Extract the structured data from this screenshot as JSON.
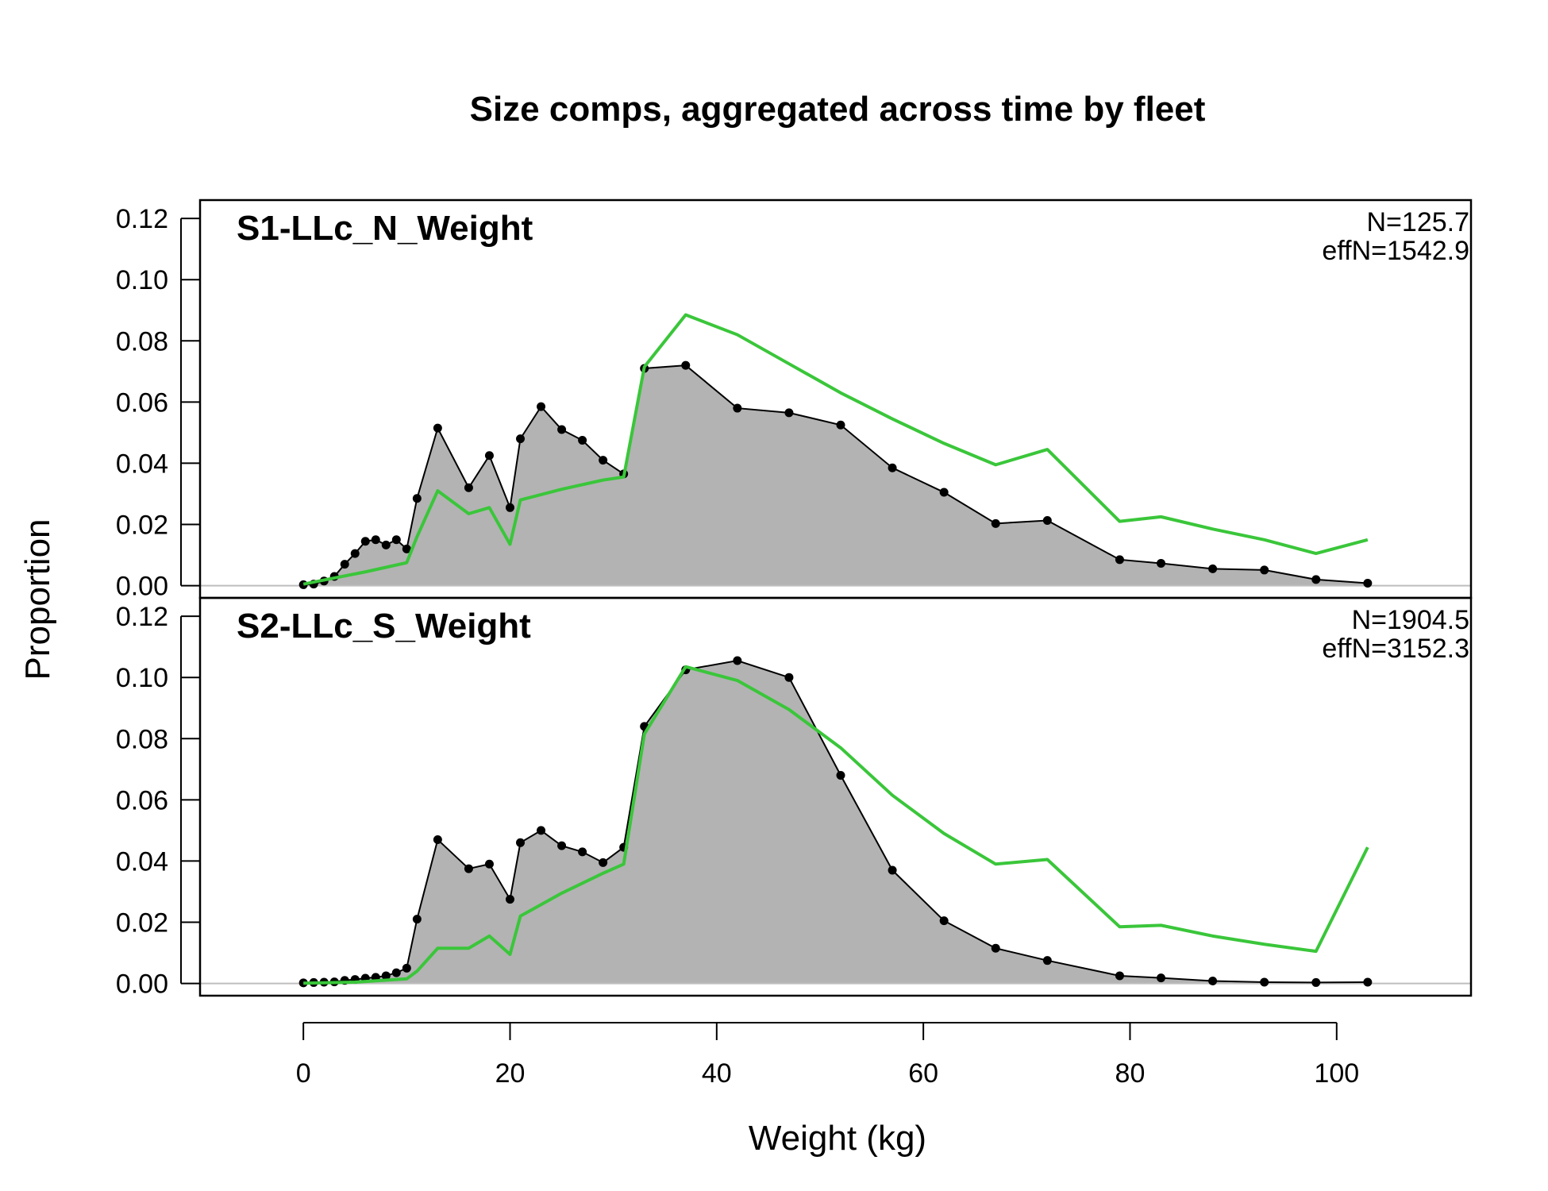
{
  "chart_data": {
    "type": "area",
    "title": "Size comps, aggregated across time by fleet",
    "xlabel": "Weight (kg)",
    "ylabel": "Proportion",
    "xlim": [
      -10,
      113
    ],
    "xticks": [
      0,
      20,
      40,
      60,
      80,
      100
    ],
    "ylim": [
      -0.004,
      0.126
    ],
    "yticks": [
      0.0,
      0.02,
      0.04,
      0.06,
      0.08,
      0.1,
      0.12
    ],
    "ytick_labels": [
      "0.00",
      "0.02",
      "0.04",
      "0.06",
      "0.08",
      "0.10",
      "0.12"
    ],
    "colors": {
      "observed_fill": "#b3b3b3",
      "observed_line": "#000000",
      "expected_line": "#3ac63a",
      "zero_line": "#bebebe"
    },
    "panels": [
      {
        "label": "S1-LLc_N_Weight",
        "n_label": "N=125.7",
        "effn_label": "effN=1542.9",
        "observed": {
          "x": [
            0,
            1,
            2,
            3,
            4,
            5,
            6,
            7,
            8,
            9,
            10,
            11,
            13,
            16,
            18,
            20,
            21,
            23,
            25,
            27,
            29,
            31,
            33,
            37,
            42,
            47,
            52,
            57,
            62,
            67,
            72,
            79,
            83,
            88,
            93,
            98,
            103
          ],
          "y": [
            0.0003,
            0.0005,
            0.0015,
            0.003,
            0.007,
            0.0105,
            0.0145,
            0.015,
            0.0133,
            0.015,
            0.012,
            0.0285,
            0.0515,
            0.032,
            0.0425,
            0.0255,
            0.048,
            0.0585,
            0.051,
            0.0475,
            0.041,
            0.0365,
            0.071,
            0.072,
            0.058,
            0.0565,
            0.0525,
            0.0385,
            0.0305,
            0.0203,
            0.0213,
            0.0085,
            0.0073,
            0.0055,
            0.0051,
            0.002,
            0.0008
          ]
        },
        "expected": {
          "x": [
            0,
            3,
            6,
            10,
            11,
            13,
            16,
            18,
            20,
            21,
            25,
            29,
            31,
            33,
            37,
            42,
            47,
            52,
            57,
            62,
            67,
            72,
            79,
            83,
            88,
            93,
            98,
            103
          ],
          "y": [
            0.0005,
            0.0025,
            0.0045,
            0.0075,
            0.016,
            0.031,
            0.0235,
            0.0255,
            0.0135,
            0.028,
            0.0315,
            0.0345,
            0.0355,
            0.0715,
            0.0885,
            0.082,
            0.0725,
            0.063,
            0.0545,
            0.0465,
            0.0395,
            0.0445,
            0.021,
            0.0225,
            0.0185,
            0.015,
            0.0105,
            0.015
          ]
        }
      },
      {
        "label": "S2-LLc_S_Weight",
        "n_label": "N=1904.5",
        "effn_label": "effN=3152.3",
        "observed": {
          "x": [
            0,
            1,
            2,
            3,
            4,
            5,
            6,
            7,
            8,
            9,
            10,
            11,
            13,
            16,
            18,
            20,
            21,
            23,
            25,
            27,
            29,
            31,
            33,
            37,
            42,
            47,
            52,
            57,
            62,
            67,
            72,
            79,
            83,
            88,
            93,
            98,
            103
          ],
          "y": [
            0.0002,
            0.0003,
            0.0004,
            0.0005,
            0.001,
            0.0013,
            0.0017,
            0.002,
            0.0025,
            0.0035,
            0.005,
            0.021,
            0.047,
            0.0375,
            0.039,
            0.0275,
            0.046,
            0.05,
            0.045,
            0.043,
            0.0395,
            0.0445,
            0.084,
            0.1025,
            0.1055,
            0.1,
            0.068,
            0.037,
            0.0205,
            0.0115,
            0.0075,
            0.0025,
            0.0018,
            0.0008,
            0.0004,
            0.0003,
            0.0004
          ]
        },
        "expected": {
          "x": [
            0,
            5,
            10,
            11,
            13,
            16,
            18,
            20,
            21,
            25,
            29,
            31,
            33,
            37,
            42,
            47,
            52,
            57,
            62,
            67,
            72,
            79,
            83,
            88,
            93,
            98,
            103
          ],
          "y": [
            0.0001,
            0.0004,
            0.0015,
            0.004,
            0.0115,
            0.0115,
            0.0155,
            0.0095,
            0.022,
            0.0295,
            0.036,
            0.039,
            0.0815,
            0.1035,
            0.099,
            0.0895,
            0.077,
            0.0615,
            0.049,
            0.039,
            0.0405,
            0.0185,
            0.019,
            0.0155,
            0.0128,
            0.0105,
            0.0445
          ]
        }
      }
    ]
  }
}
